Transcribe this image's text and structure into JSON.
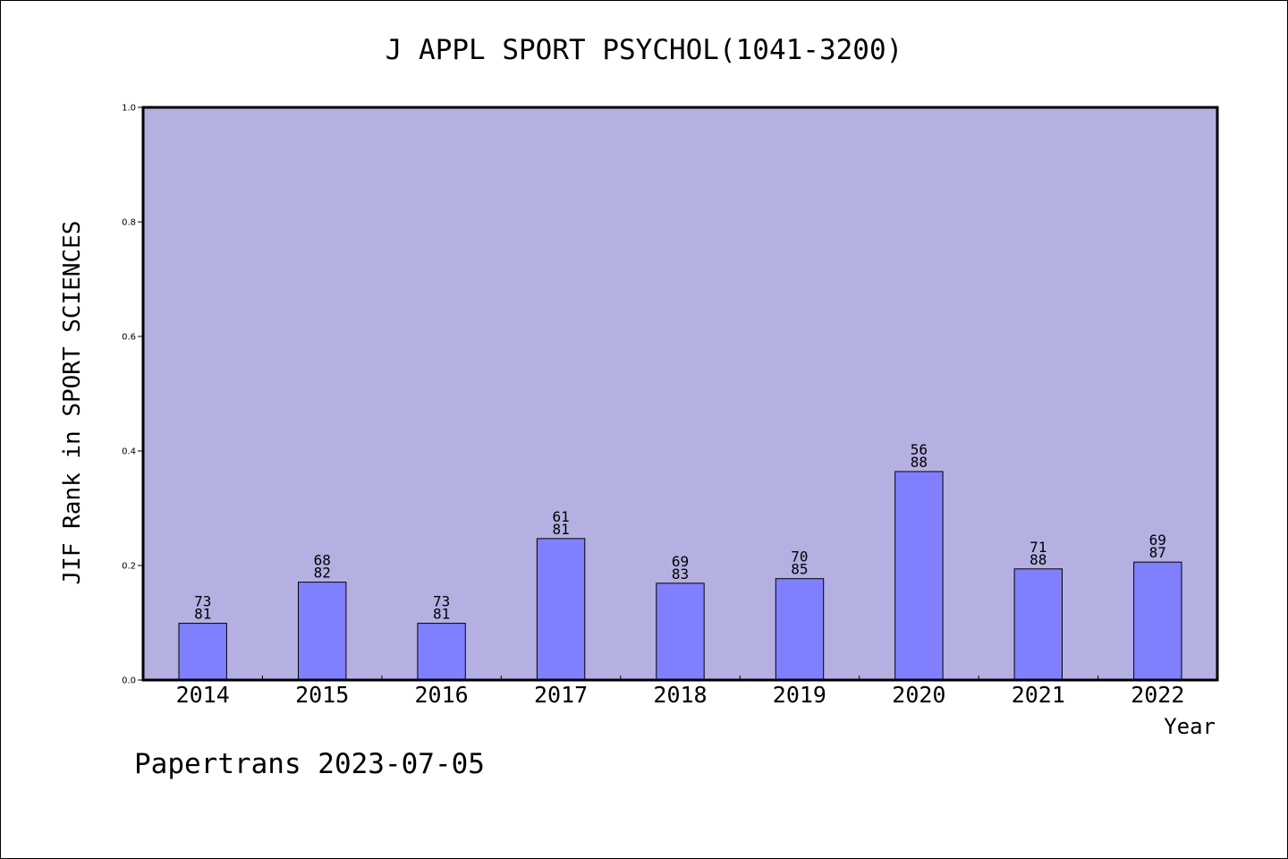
{
  "chart_data": {
    "type": "bar",
    "title": "J APPL SPORT PSYCHOL(1041-3200)",
    "xlabel": "Year",
    "ylabel": "JIF Rank in SPORT SCIENCES",
    "ylim": [
      0,
      1.0
    ],
    "yticks": [
      "0.0",
      "0.2",
      "0.4",
      "0.6",
      "0.8",
      "1.0"
    ],
    "categories": [
      "2014",
      "2015",
      "2016",
      "2017",
      "2018",
      "2019",
      "2020",
      "2021",
      "2022"
    ],
    "values": [
      0.099,
      0.171,
      0.099,
      0.247,
      0.169,
      0.177,
      0.364,
      0.194,
      0.206
    ],
    "bar_labels": [
      [
        "73",
        "81"
      ],
      [
        "68",
        "82"
      ],
      [
        "73",
        "81"
      ],
      [
        "61",
        "81"
      ],
      [
        "69",
        "83"
      ],
      [
        "70",
        "85"
      ],
      [
        "56",
        "88"
      ],
      [
        "71",
        "88"
      ],
      [
        "69",
        "87"
      ]
    ],
    "grid": false,
    "colors": {
      "plot_background": "#b5b0e2",
      "bar_fill": "#8080ff",
      "bar_stroke": "#000000"
    }
  },
  "footer": {
    "text": "Papertrans 2023-07-05"
  }
}
